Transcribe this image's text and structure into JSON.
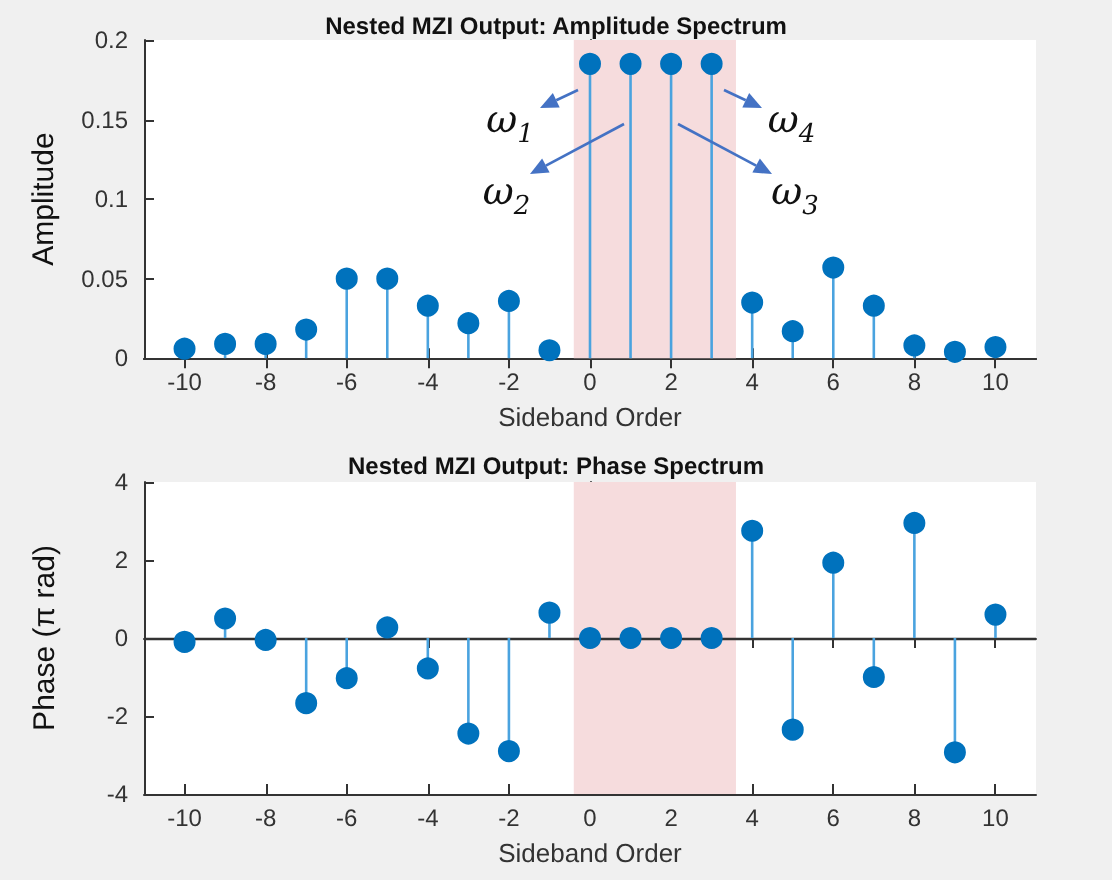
{
  "chart_data": [
    {
      "type": "lollipop",
      "title": "Nested MZI Output: Amplitude Spectrum",
      "xlabel": "Sideband Order",
      "ylabel": "Amplitude",
      "x": [
        -10,
        -9,
        -8,
        -7,
        -6,
        -5,
        -4,
        -3,
        -2,
        -1,
        0,
        1,
        2,
        3,
        4,
        5,
        6,
        7,
        8,
        9,
        10
      ],
      "series": [
        {
          "color": "#0072bd",
          "values": [
            0.006,
            0.009,
            0.009,
            0.018,
            0.05,
            0.05,
            0.033,
            0.022,
            0.036,
            0.005,
            0.185,
            0.185,
            0.185,
            0.185,
            0.035,
            0.017,
            0.057,
            0.033,
            0.008,
            0.004,
            0.007
          ]
        }
      ],
      "xlim": [
        -11,
        11
      ],
      "xticks": [
        -10,
        -8,
        -6,
        -4,
        -2,
        0,
        2,
        4,
        6,
        8,
        10
      ],
      "ylim": [
        0,
        0.2
      ],
      "yticks": [
        0,
        0.05,
        0.1,
        0.15,
        0.2
      ],
      "marker": "circle",
      "bands": [
        {
          "axis": "x",
          "from": -0.4,
          "to": 3.6,
          "color": "#f6dcdd"
        }
      ],
      "annotations": [
        "ω$_{1}$",
        "ω$_{2}$",
        "ω$_{3}$",
        "ω$_{4}$"
      ]
    },
    {
      "type": "lollipop",
      "title": "Nested MZI Output: Phase Spectrum",
      "xlabel": "Sideband Order",
      "ylabel": "Phase (π rad)",
      "x": [
        -10,
        -9,
        -8,
        -7,
        -6,
        -5,
        -4,
        -3,
        -2,
        -1,
        0,
        1,
        2,
        3,
        4,
        5,
        6,
        7,
        8,
        9,
        10
      ],
      "series": [
        {
          "color": "#0072bd",
          "values": [
            -0.1,
            0.5,
            -0.05,
            -1.67,
            -1.03,
            0.27,
            -0.78,
            -2.45,
            -2.9,
            0.65,
            0,
            0,
            0,
            0,
            2.75,
            -2.35,
            1.93,
            -1.0,
            2.95,
            -2.93,
            0.6
          ]
        }
      ],
      "xlim": [
        -11,
        11
      ],
      "xticks": [
        -10,
        -8,
        -6,
        -4,
        -2,
        0,
        2,
        4,
        6,
        8,
        10
      ],
      "ylim": [
        -4,
        4
      ],
      "yticks": [
        -4,
        -2,
        0,
        2,
        4
      ],
      "marker": "circle",
      "ref_lines": [
        {
          "axis": "y",
          "value": 0,
          "color": "#333333"
        }
      ],
      "bands": [
        {
          "axis": "x",
          "from": -0.4,
          "to": 3.6,
          "color": "#f6dcdd"
        }
      ]
    }
  ]
}
